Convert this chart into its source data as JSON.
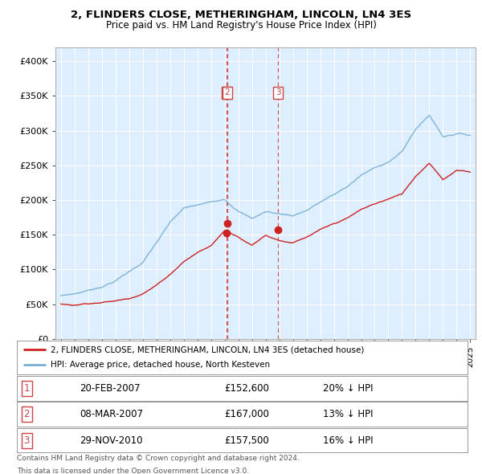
{
  "title": "2, FLINDERS CLOSE, METHERINGHAM, LINCOLN, LN4 3ES",
  "subtitle": "Price paid vs. HM Land Registry's House Price Index (HPI)",
  "hpi_color": "#7ab0d4",
  "price_color": "#cc2222",
  "vline_color": "#cc4444",
  "ylim": [
    0,
    420000
  ],
  "yticks": [
    0,
    50000,
    100000,
    150000,
    200000,
    250000,
    300000,
    350000,
    400000
  ],
  "ytick_labels": [
    "£0",
    "£50K",
    "£100K",
    "£150K",
    "£200K",
    "£250K",
    "£300K",
    "£350K",
    "£400K"
  ],
  "xlim_start": 1994.6,
  "xlim_end": 2025.4,
  "transactions": [
    {
      "label": "1",
      "date": "20-FEB-2007",
      "price": 152600,
      "price_str": "£152,600",
      "hpi_diff": "20% ↓ HPI",
      "x_year": 2007.12
    },
    {
      "label": "2",
      "date": "08-MAR-2007",
      "price": 167000,
      "price_str": "£167,000",
      "hpi_diff": "13% ↓ HPI",
      "x_year": 2007.2
    },
    {
      "label": "3",
      "date": "29-NOV-2010",
      "price": 157500,
      "price_str": "£157,500",
      "hpi_diff": "16% ↓ HPI",
      "x_year": 2010.91
    }
  ],
  "legend_entries": [
    "2, FLINDERS CLOSE, METHERINGHAM, LINCOLN, LN4 3ES (detached house)",
    "HPI: Average price, detached house, North Kesteven"
  ],
  "footnote_line1": "Contains HM Land Registry data © Crown copyright and database right 2024.",
  "footnote_line2": "This data is licensed under the Open Government Licence v3.0.",
  "hpi_base": {
    "1995": 62000,
    "1996": 65000,
    "1997": 70000,
    "1998": 76000,
    "1999": 85000,
    "2000": 98000,
    "2001": 112000,
    "2002": 140000,
    "2003": 168000,
    "2004": 188000,
    "2005": 192000,
    "2006": 196000,
    "2007": 202000,
    "2008": 186000,
    "2009": 175000,
    "2010": 185000,
    "2011": 182000,
    "2012": 180000,
    "2013": 188000,
    "2014": 200000,
    "2015": 210000,
    "2016": 222000,
    "2017": 238000,
    "2018": 248000,
    "2019": 258000,
    "2020": 272000,
    "2021": 305000,
    "2022": 325000,
    "2023": 295000,
    "2024": 300000,
    "2025": 298000
  },
  "price_base": {
    "1995": 50000,
    "1996": 49000,
    "1997": 52000,
    "1998": 54000,
    "1999": 56000,
    "2000": 60000,
    "2001": 68000,
    "2002": 80000,
    "2003": 96000,
    "2004": 115000,
    "2005": 128000,
    "2006": 138000,
    "2007": 160000,
    "2008": 152000,
    "2009": 140000,
    "2010": 155000,
    "2011": 148000,
    "2012": 145000,
    "2013": 152000,
    "2014": 162000,
    "2015": 170000,
    "2016": 178000,
    "2017": 190000,
    "2018": 198000,
    "2019": 205000,
    "2020": 212000,
    "2021": 238000,
    "2022": 258000,
    "2023": 235000,
    "2024": 248000,
    "2025": 245000
  }
}
